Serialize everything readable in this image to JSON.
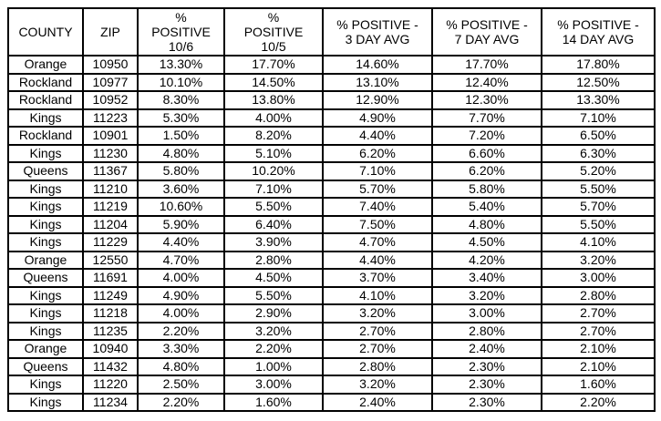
{
  "page": {
    "background_color": "#ffffff",
    "border_color": "#000000",
    "text_color": "#000000"
  },
  "chart_data": {
    "type": "table",
    "title": "",
    "columns": [
      "COUNTY",
      "ZIP",
      "%\nPOSITIVE\n10/6",
      "%\nPOSITIVE\n10/5",
      "% POSITIVE -\n3 DAY AVG",
      "% POSITIVE -\n7 DAY AVG",
      "% POSITIVE -\n14 DAY AVG"
    ],
    "rows": [
      [
        "Orange",
        "10950",
        "13.30%",
        "17.70%",
        "14.60%",
        "17.70%",
        "17.80%"
      ],
      [
        "Rockland",
        "10977",
        "10.10%",
        "14.50%",
        "13.10%",
        "12.40%",
        "12.50%"
      ],
      [
        "Rockland",
        "10952",
        "8.30%",
        "13.80%",
        "12.90%",
        "12.30%",
        "13.30%"
      ],
      [
        "Kings",
        "11223",
        "5.30%",
        "4.00%",
        "4.90%",
        "7.70%",
        "7.10%"
      ],
      [
        "Rockland",
        "10901",
        "1.50%",
        "8.20%",
        "4.40%",
        "7.20%",
        "6.50%"
      ],
      [
        "Kings",
        "11230",
        "4.80%",
        "5.10%",
        "6.20%",
        "6.60%",
        "6.30%"
      ],
      [
        "Queens",
        "11367",
        "5.80%",
        "10.20%",
        "7.10%",
        "6.20%",
        "5.20%"
      ],
      [
        "Kings",
        "11210",
        "3.60%",
        "7.10%",
        "5.70%",
        "5.80%",
        "5.50%"
      ],
      [
        "Kings",
        "11219",
        "10.60%",
        "5.50%",
        "7.40%",
        "5.40%",
        "5.70%"
      ],
      [
        "Kings",
        "11204",
        "5.90%",
        "6.40%",
        "7.50%",
        "4.80%",
        "5.50%"
      ],
      [
        "Kings",
        "11229",
        "4.40%",
        "3.90%",
        "4.70%",
        "4.50%",
        "4.10%"
      ],
      [
        "Orange",
        "12550",
        "4.70%",
        "2.80%",
        "4.40%",
        "4.20%",
        "3.20%"
      ],
      [
        "Queens",
        "11691",
        "4.00%",
        "4.50%",
        "3.70%",
        "3.40%",
        "3.00%"
      ],
      [
        "Kings",
        "11249",
        "4.90%",
        "5.50%",
        "4.10%",
        "3.20%",
        "2.80%"
      ],
      [
        "Kings",
        "11218",
        "4.00%",
        "2.90%",
        "3.20%",
        "3.00%",
        "2.70%"
      ],
      [
        "Kings",
        "11235",
        "2.20%",
        "3.20%",
        "2.70%",
        "2.80%",
        "2.70%"
      ],
      [
        "Orange",
        "10940",
        "3.30%",
        "2.20%",
        "2.70%",
        "2.40%",
        "2.10%"
      ],
      [
        "Queens",
        "11432",
        "4.80%",
        "1.00%",
        "2.80%",
        "2.30%",
        "2.10%"
      ],
      [
        "Kings",
        "11220",
        "2.50%",
        "3.00%",
        "3.20%",
        "2.30%",
        "1.60%"
      ],
      [
        "Kings",
        "11234",
        "2.20%",
        "1.60%",
        "2.40%",
        "2.30%",
        "2.20%"
      ]
    ]
  }
}
